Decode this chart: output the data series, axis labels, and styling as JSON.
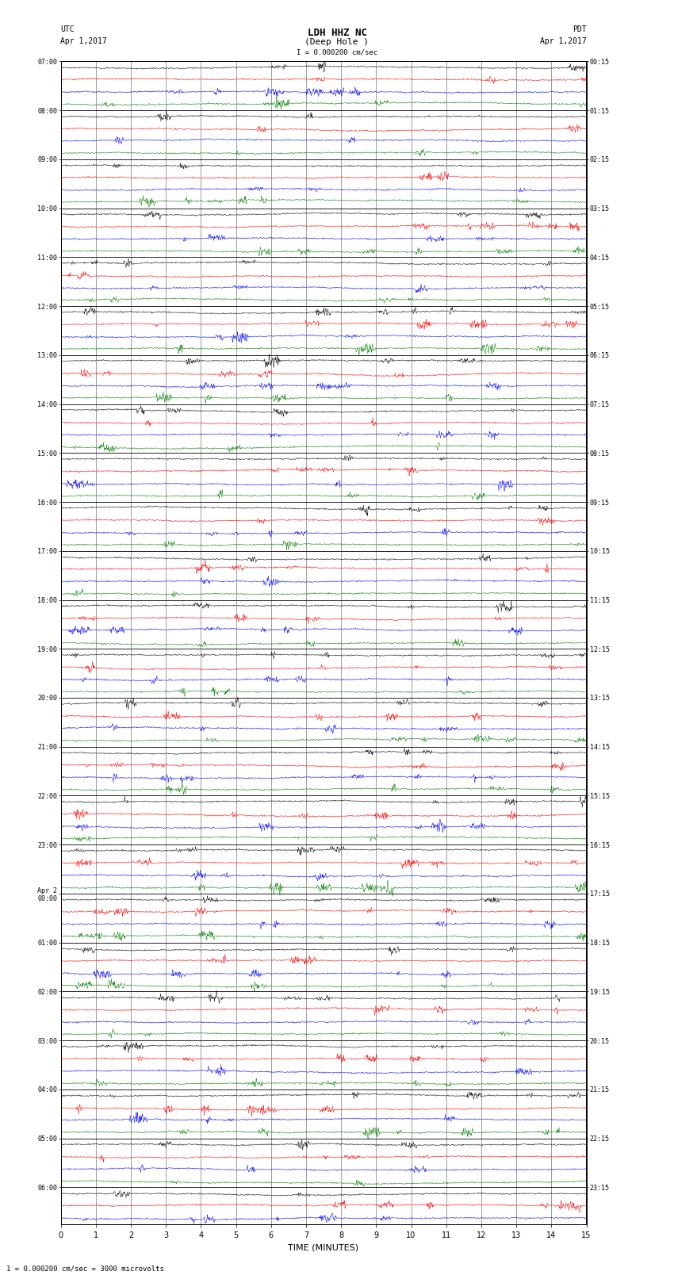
{
  "title_line1": "LDH HHZ NC",
  "title_line2": "(Deep Hole )",
  "scale_text": "I = 0.000200 cm/sec",
  "left_label": "UTC",
  "right_label": "PDT",
  "left_date": "Apr 1,2017",
  "right_date": "Apr 1,2017",
  "xlabel": "TIME (MINUTES)",
  "footer": "1 = 0.000200 cm/sec = 3000 microvolts",
  "left_times": [
    "07:00",
    "",
    "",
    "",
    "08:00",
    "",
    "",
    "",
    "09:00",
    "",
    "",
    "",
    "10:00",
    "",
    "",
    "",
    "11:00",
    "",
    "",
    "",
    "12:00",
    "",
    "",
    "",
    "13:00",
    "",
    "",
    "",
    "14:00",
    "",
    "",
    "",
    "15:00",
    "",
    "",
    "",
    "16:00",
    "",
    "",
    "",
    "17:00",
    "",
    "",
    "",
    "18:00",
    "",
    "",
    "",
    "19:00",
    "",
    "",
    "",
    "20:00",
    "",
    "",
    "",
    "21:00",
    "",
    "",
    "",
    "22:00",
    "",
    "",
    "",
    "23:00",
    "",
    "",
    "",
    "Apr 2\n00:00",
    "",
    "",
    "",
    "01:00",
    "",
    "",
    "",
    "02:00",
    "",
    "",
    "",
    "03:00",
    "",
    "",
    "",
    "04:00",
    "",
    "",
    "",
    "05:00",
    "",
    "",
    "",
    "06:00",
    "",
    ""
  ],
  "right_times": [
    "00:15",
    "",
    "",
    "",
    "01:15",
    "",
    "",
    "",
    "02:15",
    "",
    "",
    "",
    "03:15",
    "",
    "",
    "",
    "04:15",
    "",
    "",
    "",
    "05:15",
    "",
    "",
    "",
    "06:15",
    "",
    "",
    "",
    "07:15",
    "",
    "",
    "",
    "08:15",
    "",
    "",
    "",
    "09:15",
    "",
    "",
    "",
    "10:15",
    "",
    "",
    "",
    "11:15",
    "",
    "",
    "",
    "12:15",
    "",
    "",
    "",
    "13:15",
    "",
    "",
    "",
    "14:15",
    "",
    "",
    "",
    "15:15",
    "",
    "",
    "",
    "16:15",
    "",
    "",
    "",
    "17:15",
    "",
    "",
    "",
    "18:15",
    "",
    "",
    "",
    "19:15",
    "",
    "",
    "",
    "20:15",
    "",
    "",
    "",
    "21:15",
    "",
    "",
    "",
    "22:15",
    "",
    "",
    "",
    "23:15",
    "",
    ""
  ],
  "trace_colors": [
    "black",
    "red",
    "blue",
    "green"
  ],
  "n_rows_total": 95,
  "bg_color": "white",
  "grid_color": "#777777",
  "xmin": 0,
  "xmax": 15,
  "xticks": [
    0,
    1,
    2,
    3,
    4,
    5,
    6,
    7,
    8,
    9,
    10,
    11,
    12,
    13,
    14,
    15
  ]
}
